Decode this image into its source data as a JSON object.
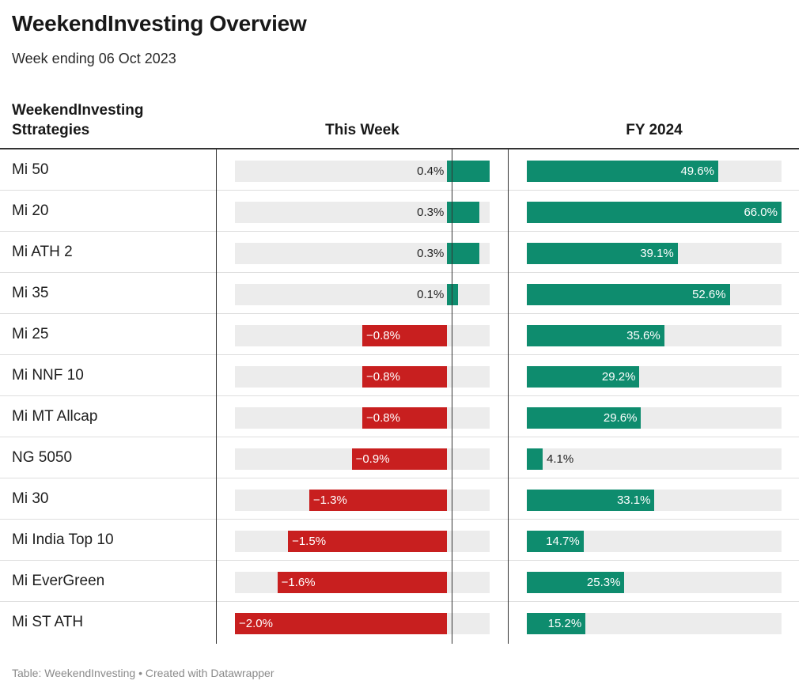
{
  "title": "WeekendInvesting Overview",
  "subtitle": "Week ending 06 Oct 2023",
  "columns": {
    "strategy": "WeekendInvesting Sttrategies",
    "week": "This Week",
    "fy": "FY 2024"
  },
  "colors": {
    "positive": "#0e8c6e",
    "negative": "#c81f1f",
    "track": "#ececec"
  },
  "chart_data": {
    "type": "table",
    "week_range": [
      -2.0,
      0.4
    ],
    "fy_range": [
      0,
      66.0
    ],
    "rows": [
      {
        "name": "Mi 50",
        "week": 0.4,
        "fy": 49.6,
        "week_label": "0.4%",
        "fy_label": "49.6%"
      },
      {
        "name": "Mi 20",
        "week": 0.3,
        "fy": 66.0,
        "week_label": "0.3%",
        "fy_label": "66.0%"
      },
      {
        "name": "Mi ATH 2",
        "week": 0.3,
        "fy": 39.1,
        "week_label": "0.3%",
        "fy_label": "39.1%"
      },
      {
        "name": "Mi 35",
        "week": 0.1,
        "fy": 52.6,
        "week_label": "0.1%",
        "fy_label": "52.6%"
      },
      {
        "name": "Mi 25",
        "week": -0.8,
        "fy": 35.6,
        "week_label": "−0.8%",
        "fy_label": "35.6%"
      },
      {
        "name": "Mi NNF 10",
        "week": -0.8,
        "fy": 29.2,
        "week_label": "−0.8%",
        "fy_label": "29.2%"
      },
      {
        "name": "Mi MT Allcap",
        "week": -0.8,
        "fy": 29.6,
        "week_label": "−0.8%",
        "fy_label": "29.6%"
      },
      {
        "name": "NG 5050",
        "week": -0.9,
        "fy": 4.1,
        "week_label": "−0.9%",
        "fy_label": "4.1%"
      },
      {
        "name": "Mi 30",
        "week": -1.3,
        "fy": 33.1,
        "week_label": "−1.3%",
        "fy_label": "33.1%"
      },
      {
        "name": "Mi India Top 10",
        "week": -1.5,
        "fy": 14.7,
        "week_label": "−1.5%",
        "fy_label": "14.7%"
      },
      {
        "name": "Mi EverGreen",
        "week": -1.6,
        "fy": 25.3,
        "week_label": "−1.6%",
        "fy_label": "25.3%"
      },
      {
        "name": "Mi ST ATH",
        "week": -2.0,
        "fy": 15.2,
        "week_label": "−2.0%",
        "fy_label": "15.2%"
      }
    ]
  },
  "footer": "Table: WeekendInvesting • Created with Datawrapper"
}
